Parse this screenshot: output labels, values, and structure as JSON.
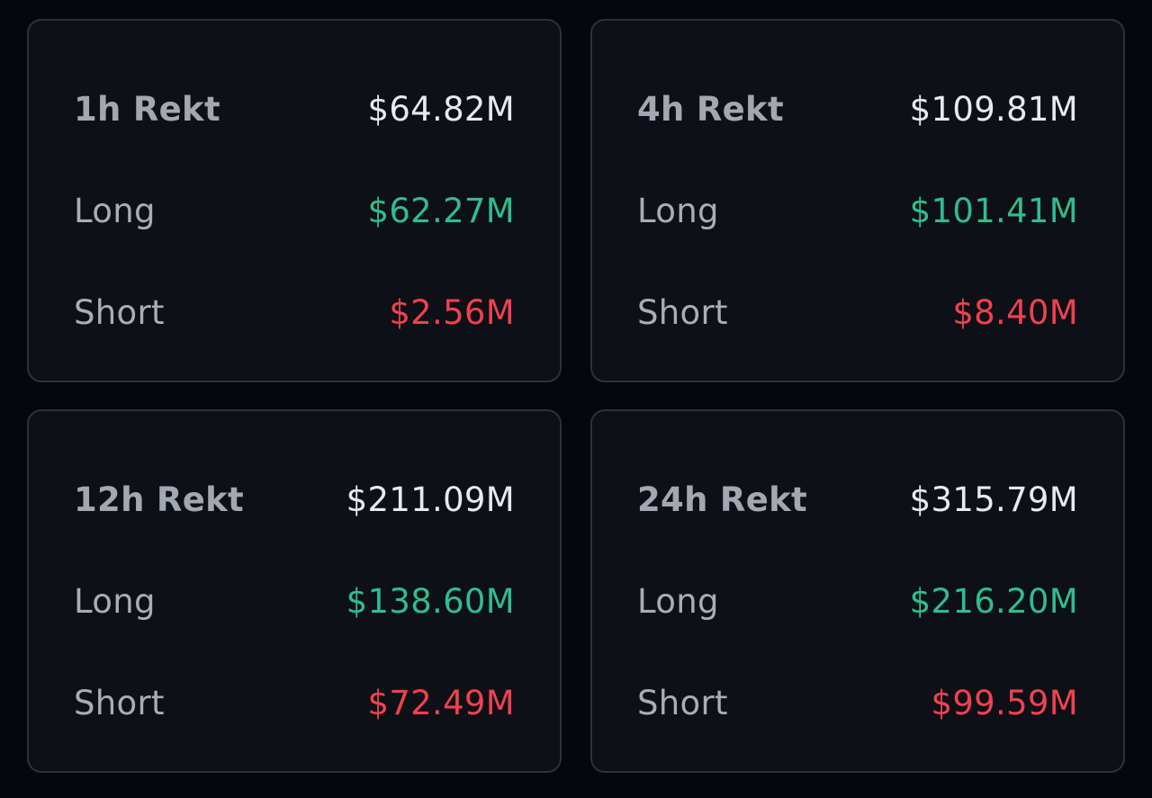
{
  "colors": {
    "background": "#04070b",
    "card": "#0d1016",
    "card_border": "#2c313a",
    "label": "#a9adb5",
    "total": "#e9eaee",
    "long": "#2ebd8f",
    "short": "#f0414f"
  },
  "cards": [
    {
      "title": "1h Rekt",
      "total": "$64.82M",
      "long_label": "Long",
      "long": "$62.27M",
      "short_label": "Short",
      "short": "$2.56M"
    },
    {
      "title": "4h Rekt",
      "total": "$109.81M",
      "long_label": "Long",
      "long": "$101.41M",
      "short_label": "Short",
      "short": "$8.40M"
    },
    {
      "title": "12h Rekt",
      "total": "$211.09M",
      "long_label": "Long",
      "long": "$138.60M",
      "short_label": "Short",
      "short": "$72.49M"
    },
    {
      "title": "24h Rekt",
      "total": "$315.79M",
      "long_label": "Long",
      "long": "$216.20M",
      "short_label": "Short",
      "short": "$99.59M"
    }
  ]
}
